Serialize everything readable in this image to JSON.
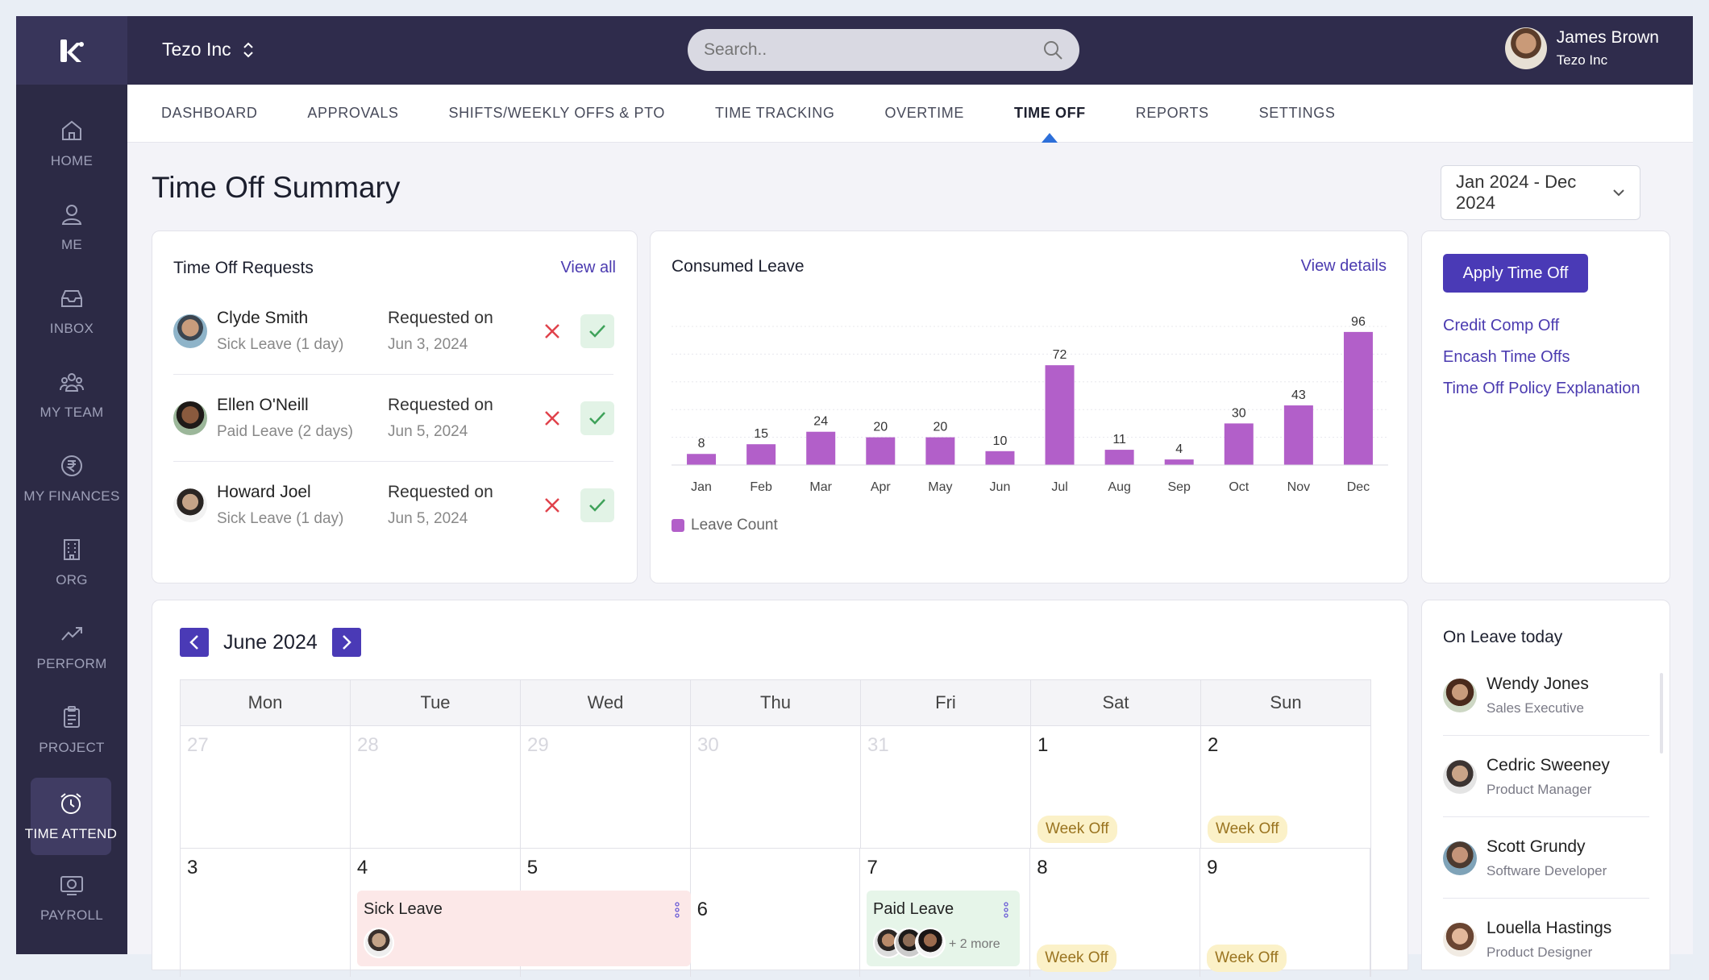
{
  "app": {
    "company": "Tezo Inc",
    "user_name": "James Brown",
    "user_org": "Tezo Inc"
  },
  "search": {
    "placeholder": "Search.."
  },
  "sidebar": {
    "items": [
      {
        "label": "HOME",
        "icon": "home-icon"
      },
      {
        "label": "ME",
        "icon": "user-icon"
      },
      {
        "label": "INBOX",
        "icon": "inbox-icon"
      },
      {
        "label": "MY TEAM",
        "icon": "team-icon"
      },
      {
        "label": "MY FINANCES",
        "icon": "rupee-icon"
      },
      {
        "label": "ORG",
        "icon": "building-icon"
      },
      {
        "label": "PERFORM",
        "icon": "trend-icon"
      },
      {
        "label": "PROJECT",
        "icon": "clipboard-icon"
      },
      {
        "label": "TIME ATTEND",
        "icon": "alarm-clock-icon",
        "active": true
      },
      {
        "label": "PAYROLL",
        "icon": "payroll-icon"
      }
    ]
  },
  "tabs": [
    "DASHBOARD",
    "APPROVALS",
    "SHIFTS/WEEKLY OFFS & PTO",
    "TIME TRACKING",
    "OVERTIME",
    "TIME OFF",
    "REPORTS",
    "SETTINGS"
  ],
  "active_tab": "TIME OFF",
  "page": {
    "title": "Time Off Summary",
    "date_range": "Jan 2024 - Dec 2024"
  },
  "requests": {
    "title": "Time Off Requests",
    "view_all": "View all",
    "items": [
      {
        "name": "Clyde Smith",
        "type": "Sick Leave (1 day)",
        "label": "Requested on",
        "date": "Jun 3, 2024"
      },
      {
        "name": "Ellen O'Neill",
        "type": "Paid Leave (2 days)",
        "label": "Requested on",
        "date": "Jun 5, 2024"
      },
      {
        "name": "Howard Joel",
        "type": "Sick Leave (1 day)",
        "label": "Requested on",
        "date": "Jun 5, 2024"
      }
    ]
  },
  "consumed": {
    "title": "Consumed Leave",
    "view_details": "View details"
  },
  "chart_data": {
    "type": "bar",
    "categories": [
      "Jan",
      "Feb",
      "Mar",
      "Apr",
      "May",
      "Jun",
      "Jul",
      "Aug",
      "Sep",
      "Oct",
      "Nov",
      "Dec"
    ],
    "series": [
      {
        "name": "Leave Count",
        "values": [
          8,
          15,
          24,
          20,
          20,
          10,
          72,
          11,
          4,
          30,
          43,
          96
        ]
      }
    ],
    "ylim": [
      0,
      100
    ],
    "grid": true,
    "legend": "bottom-left",
    "color": "#b25fc9"
  },
  "actions": {
    "apply": "Apply Time Off",
    "links": [
      "Credit Comp Off",
      "Encash Time Offs",
      "Time Off Policy Explanation"
    ]
  },
  "calendar": {
    "month": "June 2024",
    "weekdays": [
      "Mon",
      "Tue",
      "Wed",
      "Thu",
      "Fri",
      "Sat",
      "Sun"
    ],
    "row1": [
      "27",
      "28",
      "29",
      "30",
      "31",
      "1",
      "2"
    ],
    "row2": [
      "3",
      "4",
      "5",
      "6",
      "7",
      "8",
      "9"
    ],
    "week_off": "Week Off",
    "sick_leave": "Sick Leave",
    "paid_leave": "Paid Leave",
    "paid_more": "+ 2 more"
  },
  "on_leave": {
    "title": "On Leave today",
    "people": [
      {
        "name": "Wendy Jones",
        "role": "Sales Executive"
      },
      {
        "name": "Cedric Sweeney",
        "role": "Product Manager"
      },
      {
        "name": "Scott Grundy",
        "role": "Software Developer"
      },
      {
        "name": "Louella Hastings",
        "role": "Product Designer"
      }
    ]
  }
}
